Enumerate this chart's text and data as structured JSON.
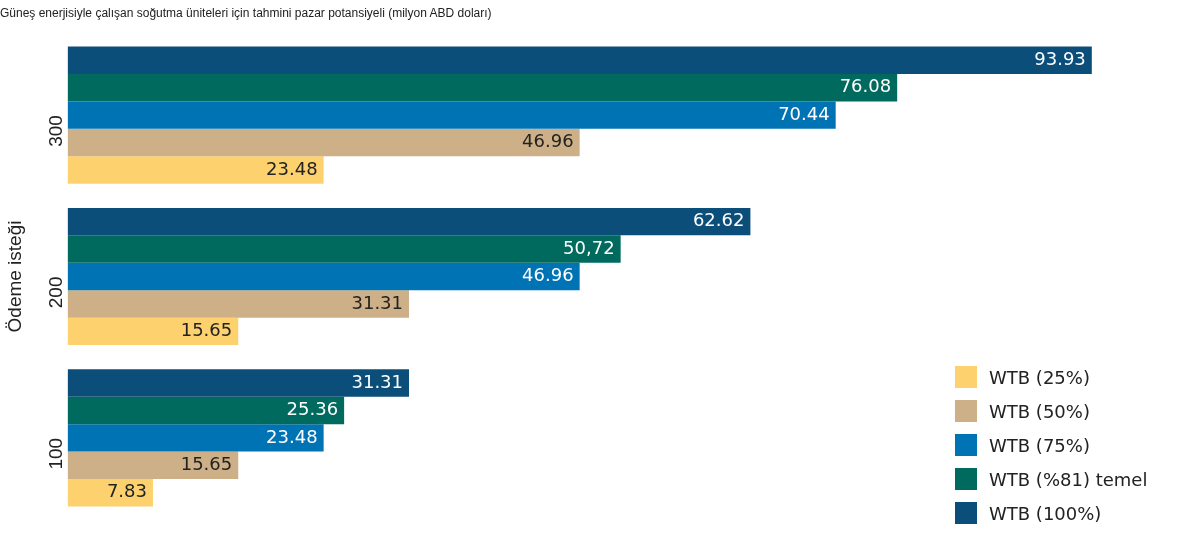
{
  "chart_data": {
    "type": "bar",
    "orientation": "horizontal",
    "title": "Güneş enerjisiyle çalışan soğutma üniteleri için tahmini pazar potansiyeli (milyon ABD doları)",
    "ylabel": "Ödeme isteği",
    "categories": [
      "300",
      "200",
      "100"
    ],
    "legend": "bottom right",
    "series": [
      {
        "name": "WTB (25%)",
        "color": "#fdd26e",
        "values": [
          23.48,
          15.65,
          7.83
        ],
        "value_labels": [
          "23.48",
          "15.65",
          "7.83"
        ]
      },
      {
        "name": "WTB (50%)",
        "color": "#cdb087",
        "values": [
          46.96,
          31.31,
          15.65
        ],
        "value_labels": [
          "46.96",
          "31.31",
          "15.65"
        ]
      },
      {
        "name": "WTB (75%)",
        "color": "#0073b5",
        "values": [
          70.44,
          46.96,
          23.48
        ],
        "value_labels": [
          "70.44",
          "46.96",
          "23.48"
        ]
      },
      {
        "name": "WTB (%81) temel",
        "color": "#006a5e",
        "values": [
          76.08,
          50.72,
          25.36
        ],
        "value_labels": [
          "76.08",
          "50,72",
          "25.36"
        ]
      },
      {
        "name": "WTB (100%)",
        "color": "#0c4e7a",
        "values": [
          93.93,
          62.62,
          31.31
        ],
        "value_labels": [
          "93.93",
          "62.62",
          "31.31"
        ]
      }
    ]
  }
}
